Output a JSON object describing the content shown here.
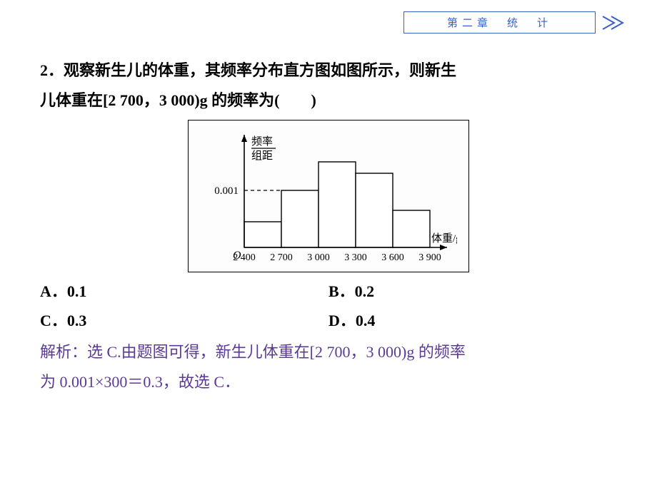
{
  "header": {
    "title": "第二章　统　计",
    "border_color": "#3a5fc8",
    "text_color": "#3a5fc8",
    "arrow_color": "#3a5fc8"
  },
  "question": {
    "number": "2",
    "line1": "2．观察新生儿的体重，其频率分布直方图如图所示，则新生",
    "line2": "儿体重在[2 700，3 000)g 的频率为(　　)"
  },
  "chart": {
    "type": "histogram",
    "y_label_top": "频率",
    "y_label_bottom": "组距",
    "x_label": "体重/g",
    "origin_label": "O",
    "y_tick_label": "0.001",
    "y_tick_value": 0.001,
    "ylim": [
      0,
      0.00175
    ],
    "x_ticks": [
      "2 400",
      "2 700",
      "3 000",
      "3 300",
      "3 600",
      "3 900"
    ],
    "bin_edges": [
      2400,
      2700,
      3000,
      3300,
      3600,
      3900
    ],
    "bar_heights": [
      0.00045,
      0.001,
      0.0015,
      0.0013,
      0.00065
    ],
    "bar_fill": "#ffffff",
    "bar_stroke": "#000000",
    "axis_color": "#000000",
    "dashed_color": "#000000",
    "background_color": "#fdfdfd",
    "border_color": "#000000",
    "font_size_labels": 15,
    "font_family": "SimSun"
  },
  "options": {
    "A": "A．0.1",
    "B": "B．0.2",
    "C": "C．0.3",
    "D": "D．0.4"
  },
  "solution": {
    "line1": "解析：选 C.由题图可得，新生儿体重在[2 700，3 000)g 的频率",
    "line2": "为 0.001×300＝0.3，故选 C．",
    "color": "#5b3a96"
  },
  "colors": {
    "text_black": "#000000",
    "page_bg": "#ffffff"
  }
}
